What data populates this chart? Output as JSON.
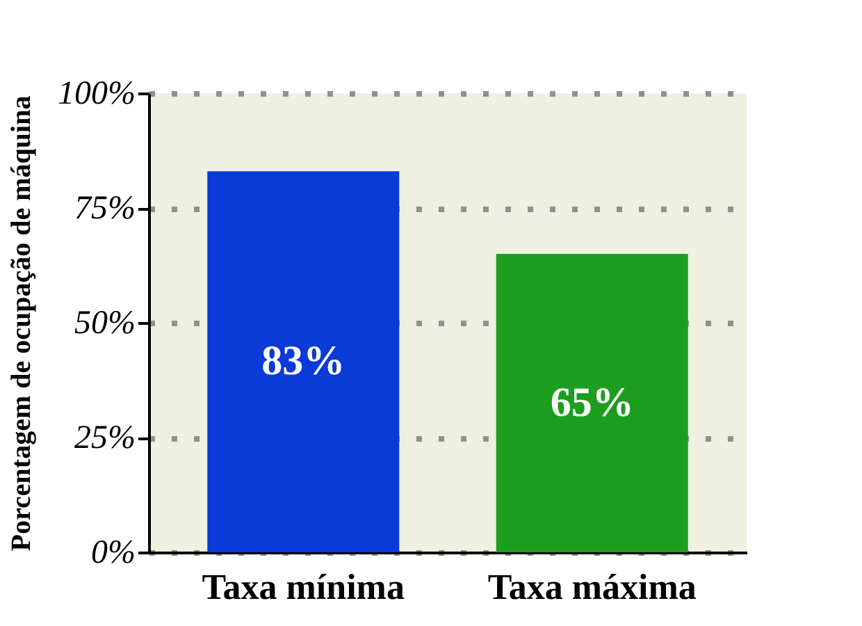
{
  "chart_data": {
    "type": "bar",
    "ylabel": "Porcentagem de ocupação de máquina",
    "categories": [
      "Taxa mínima",
      "Taxa máxima"
    ],
    "values": [
      83,
      65
    ],
    "colors": [
      "#0a3ad8",
      "#1c9e1e"
    ],
    "value_labels": [
      "83%",
      "65%"
    ],
    "ylim": [
      0,
      100
    ],
    "yticks": [
      {
        "value": 0,
        "label": "0%"
      },
      {
        "value": 25,
        "label": "25%"
      },
      {
        "value": 50,
        "label": "50%"
      },
      {
        "value": 75,
        "label": "75%"
      },
      {
        "value": 100,
        "label": "100%"
      }
    ],
    "grid": "y"
  }
}
